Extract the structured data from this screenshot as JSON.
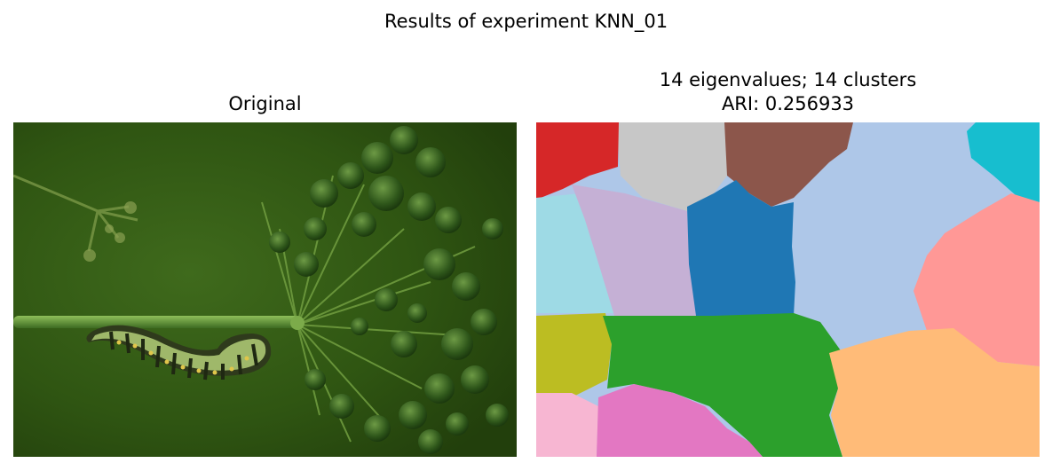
{
  "figure": {
    "suptitle": "Results of experiment KNN_01"
  },
  "left_panel": {
    "title": "Original",
    "image_description_icon": "caterpillar-photo"
  },
  "right_panel": {
    "title_line1": "14 eigenvalues; 14 clusters",
    "title_line2": "ARI: 0.256933",
    "segment_colors": [
      "#d62728",
      "#c7c7c7",
      "#8c564b",
      "#aec7e8",
      "#17becf",
      "#9edae5",
      "#c5b0d5",
      "#1f77b4",
      "#ff9896",
      "#bcbd22",
      "#2ca02c",
      "#ffbb78",
      "#f7b6d2",
      "#e377c2"
    ]
  }
}
